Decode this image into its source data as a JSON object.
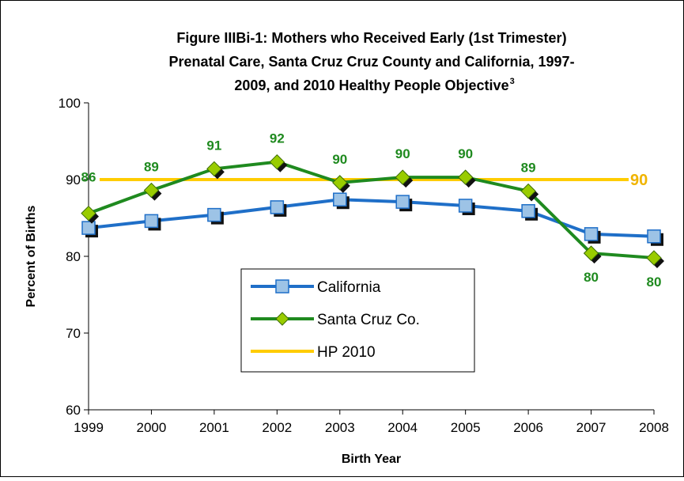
{
  "chart_data": {
    "type": "line",
    "title": [
      "Figure IIIBi-1: Mothers who Received Early (1st Trimester)",
      "Prenatal Care, Santa Cruz Cruz County and California, 1997-",
      "2009, and 2010 Healthy People Objective"
    ],
    "title_superscript": "3",
    "x_label": "Birth Year",
    "y_label": "Percent of Births",
    "categories": [
      "1999",
      "2000",
      "2001",
      "2002",
      "2003",
      "2004",
      "2005",
      "2006",
      "2007",
      "2008"
    ],
    "ylim": [
      60,
      100
    ],
    "yticks": [
      60,
      70,
      80,
      90,
      100
    ],
    "series": [
      {
        "name": "California",
        "color": "#1f6fc8",
        "marker": "square",
        "marker_color": "#9dc3e6",
        "values": [
          83.7,
          84.6,
          85.4,
          86.4,
          87.4,
          87.1,
          86.6,
          85.9,
          82.9,
          82.6
        ]
      },
      {
        "name": "Santa Cruz Co.",
        "color": "#1f8a1f",
        "marker": "diamond",
        "marker_color": "#99cc00",
        "values": [
          85.6,
          88.6,
          91.4,
          92.3,
          89.6,
          90.3,
          90.3,
          88.5,
          80.4,
          79.8
        ],
        "value_labels": [
          "86",
          "89",
          "91",
          "92",
          "90",
          "90",
          "90",
          "89",
          "80",
          "80"
        ]
      },
      {
        "name": "HP 2010",
        "color": "#ffcc00",
        "marker": "none",
        "values": [
          90,
          90,
          90,
          90,
          90,
          90,
          90,
          90,
          90,
          90
        ]
      }
    ]
  }
}
